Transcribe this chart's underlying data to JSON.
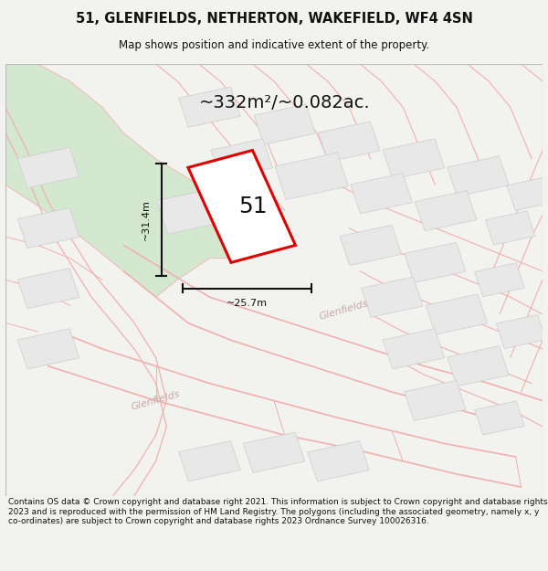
{
  "title_line1": "51, GLENFIELDS, NETHERTON, WAKEFIELD, WF4 4SN",
  "title_line2": "Map shows position and indicative extent of the property.",
  "area_label": "~332m²/~0.082ac.",
  "property_number": "51",
  "dim_width": "~25.7m",
  "dim_height": "~31.4m",
  "footer_text": "Contains OS data © Crown copyright and database right 2021. This information is subject to Crown copyright and database rights 2023 and is reproduced with the permission of HM Land Registry. The polygons (including the associated geometry, namely x, y co-ordinates) are subject to Crown copyright and database rights 2023 Ordnance Survey 100026316.",
  "bg_color": "#f2f2ee",
  "map_bg": "#ffffff",
  "green_area_color": "#d4e8d0",
  "plot_outline_color": "#dd0000",
  "road_stroke_color": "#f0b8b8",
  "building_color": "#e8e8e8",
  "building_edge_color": "#cccccc",
  "dim_line_color": "#111111",
  "road_label_color": "#c8a8a8",
  "street_name": "Glenfields",
  "title_fontsize": 10.5,
  "subtitle_fontsize": 8.5,
  "area_fontsize": 14,
  "property_fontsize": 18,
  "dim_fontsize": 8,
  "footer_fontsize": 6.5
}
